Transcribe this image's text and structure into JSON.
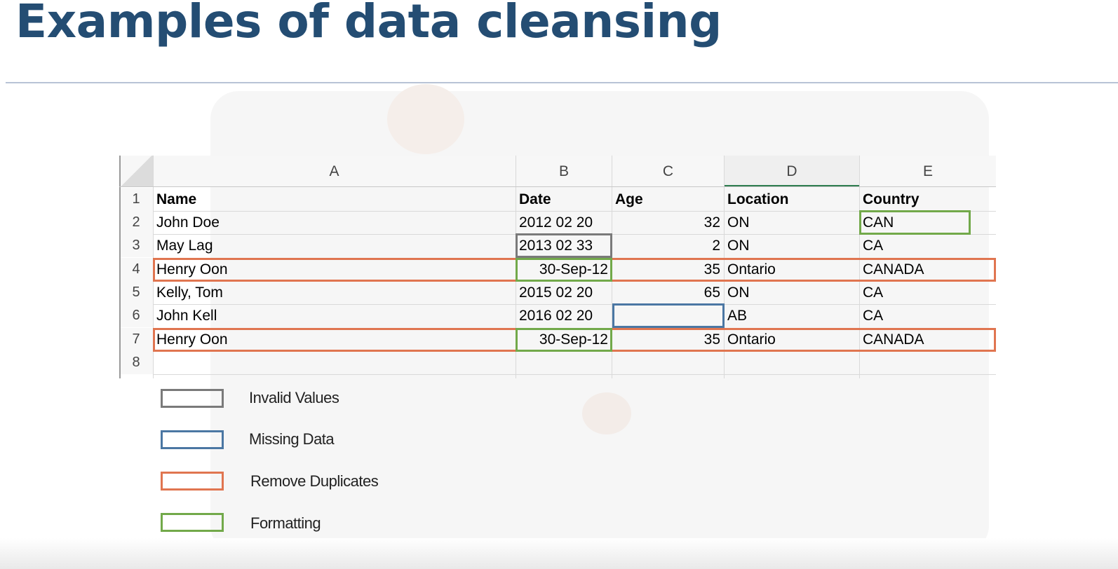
{
  "title": "Examples of data cleansing",
  "spreadsheet": {
    "columns": [
      "A",
      "B",
      "C",
      "D",
      "E"
    ],
    "row_numbers": [
      "1",
      "2",
      "3",
      "4",
      "5",
      "6",
      "7",
      "8"
    ],
    "header": [
      "Name",
      "Date",
      "Age",
      "Location",
      "Country"
    ],
    "rows": [
      [
        "John Doe",
        "2012 02 20",
        "32",
        "ON",
        "CAN"
      ],
      [
        "May Lag",
        "2013 02 33",
        "2",
        "ON",
        "CA"
      ],
      [
        "Henry Oon",
        "30-Sep-12",
        "35",
        "Ontario",
        "CANADA"
      ],
      [
        "Kelly, Tom",
        "2015 02 20",
        "65",
        "ON",
        "CA"
      ],
      [
        "John Kell",
        "2016 02 20",
        "",
        "AB",
        "CA"
      ],
      [
        "Henry Oon",
        "30-Sep-12",
        "35",
        "Ontario",
        "CANADA"
      ]
    ]
  },
  "legend": [
    {
      "label": "Invalid Values",
      "color": "#7a7a7a"
    },
    {
      "label": "Missing Data",
      "color": "#4b77a3"
    },
    {
      "label": "Remove Duplicates",
      "color": "#e07550"
    },
    {
      "label": "Formatting",
      "color": "#72a94a"
    }
  ]
}
